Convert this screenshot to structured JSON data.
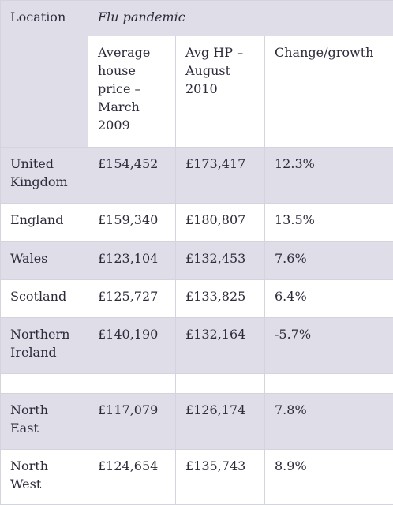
{
  "table": {
    "header": {
      "location": "Location",
      "group": "Flu pandemic"
    },
    "columns": [
      "Average house price – March 2009",
      "Avg HP – August 2010",
      "Change/growth"
    ],
    "rows": [
      [
        "United Kingdom",
        "£154,452",
        "£173,417",
        "12.3%"
      ],
      [
        "England",
        "£159,340",
        "£180,807",
        "13.5%"
      ],
      [
        "Wales",
        "£123,104",
        "£132,453",
        "7.6%"
      ],
      [
        "Scotland",
        "£125,727",
        "£133,825",
        "6.4%"
      ],
      [
        "Northern Ireland",
        "£140,190",
        "£132,164",
        "-5.7%"
      ],
      [
        "North East",
        "£117,079",
        "£126,174",
        "7.8%"
      ],
      [
        "North West",
        "£124,654",
        "£135,743",
        "8.9%"
      ]
    ]
  }
}
